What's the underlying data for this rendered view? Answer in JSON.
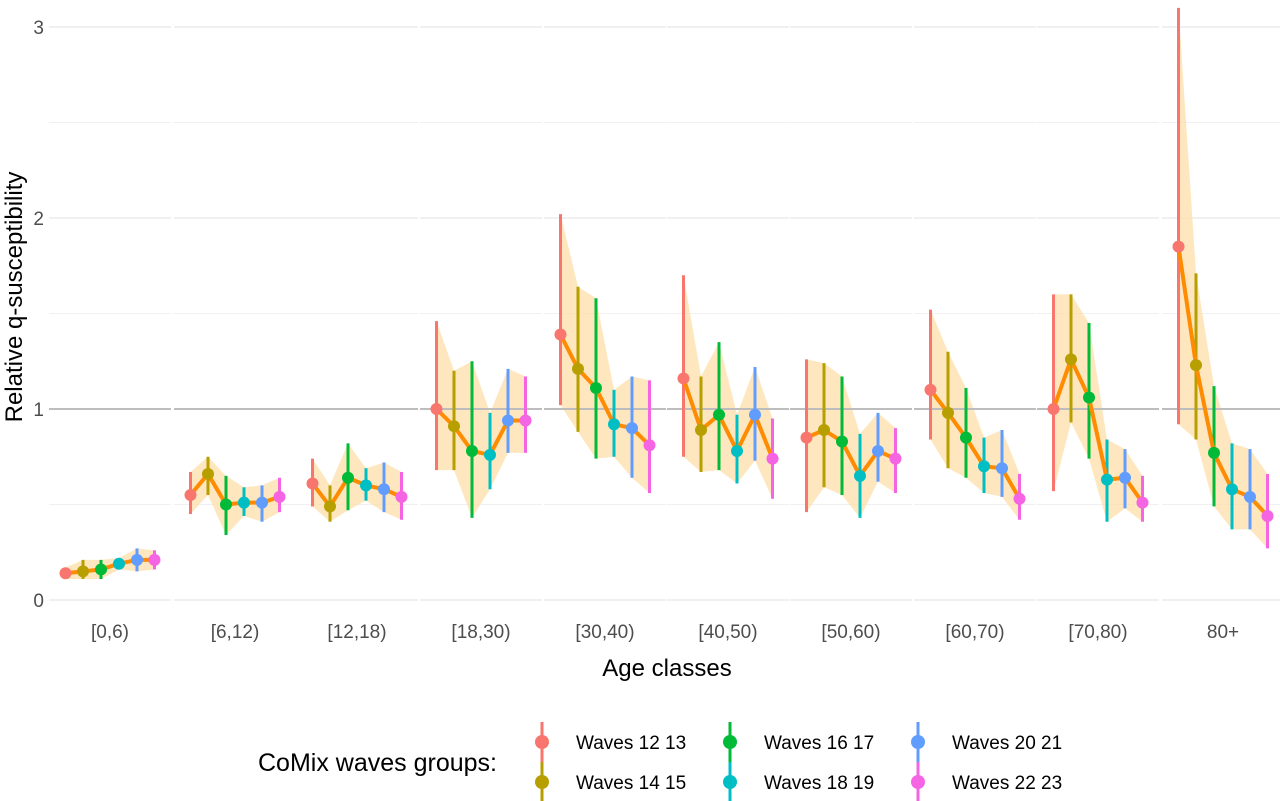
{
  "chart_data": {
    "type": "line",
    "title": "",
    "xlabel": "Age classes",
    "ylabel": "Relative q-susceptibility",
    "ylim": [
      0,
      3.1
    ],
    "yticks": [
      "0",
      "1",
      "2",
      "3"
    ],
    "reference_line": 1,
    "grid": true,
    "legend_position": "bottom",
    "legend_title": "CoMix waves groups:",
    "categories": [
      "[0,6)",
      "[6,12)",
      "[12,18)",
      "[18,30)",
      "[30,40)",
      "[40,50)",
      "[50,60)",
      "[60,70)",
      "[70,80)",
      "80+"
    ],
    "series": [
      {
        "name": "Waves 12 13",
        "color": "#F8766D",
        "values": [
          0.14,
          0.55,
          0.61,
          1.0,
          1.39,
          1.16,
          0.85,
          1.1,
          1.0,
          1.85
        ],
        "lower": [
          0.11,
          0.45,
          0.49,
          0.68,
          1.02,
          0.75,
          0.46,
          0.84,
          0.57,
          0.92
        ],
        "upper": [
          0.17,
          0.67,
          0.74,
          1.46,
          2.02,
          1.7,
          1.26,
          1.52,
          1.6,
          3.1
        ]
      },
      {
        "name": "Waves 14 15",
        "color": "#B79F00",
        "values": [
          0.15,
          0.66,
          0.49,
          0.91,
          1.21,
          0.89,
          0.89,
          0.98,
          1.26,
          1.23
        ],
        "lower": [
          0.11,
          0.55,
          0.41,
          0.68,
          0.88,
          0.67,
          0.59,
          0.69,
          0.93,
          0.84
        ],
        "upper": [
          0.21,
          0.75,
          0.6,
          1.2,
          1.64,
          1.17,
          1.24,
          1.3,
          1.6,
          1.71
        ]
      },
      {
        "name": "Waves 16 17",
        "color": "#00BA38",
        "values": [
          0.16,
          0.5,
          0.64,
          0.78,
          1.11,
          0.97,
          0.83,
          0.85,
          1.06,
          0.77
        ],
        "lower": [
          0.11,
          0.34,
          0.47,
          0.43,
          0.74,
          0.68,
          0.55,
          0.64,
          0.74,
          0.49
        ],
        "upper": [
          0.21,
          0.65,
          0.82,
          1.25,
          1.58,
          1.35,
          1.17,
          1.11,
          1.45,
          1.12
        ]
      },
      {
        "name": "Waves 18 19",
        "color": "#00BFC4",
        "values": [
          0.19,
          0.51,
          0.6,
          0.76,
          0.92,
          0.78,
          0.65,
          0.7,
          0.63,
          0.58
        ],
        "lower": [
          0.16,
          0.44,
          0.52,
          0.58,
          0.75,
          0.61,
          0.43,
          0.56,
          0.41,
          0.37
        ],
        "upper": [
          0.22,
          0.59,
          0.69,
          0.98,
          1.1,
          0.97,
          0.87,
          0.85,
          0.84,
          0.82
        ]
      },
      {
        "name": "Waves 20 21",
        "color": "#619CFF",
        "values": [
          0.21,
          0.51,
          0.58,
          0.94,
          0.9,
          0.97,
          0.78,
          0.69,
          0.64,
          0.54
        ],
        "lower": [
          0.15,
          0.41,
          0.46,
          0.77,
          0.64,
          0.73,
          0.62,
          0.54,
          0.48,
          0.37
        ],
        "upper": [
          0.27,
          0.6,
          0.72,
          1.21,
          1.17,
          1.22,
          0.98,
          0.89,
          0.79,
          0.79
        ]
      },
      {
        "name": "Waves 22 23",
        "color": "#F564E3",
        "values": [
          0.21,
          0.54,
          0.54,
          0.94,
          0.81,
          0.74,
          0.74,
          0.53,
          0.51,
          0.44
        ],
        "lower": [
          0.16,
          0.46,
          0.42,
          0.77,
          0.56,
          0.53,
          0.56,
          0.42,
          0.41,
          0.27
        ],
        "upper": [
          0.26,
          0.64,
          0.67,
          1.17,
          1.15,
          0.95,
          0.9,
          0.66,
          0.65,
          0.66
        ]
      }
    ],
    "trend_color": "#FF8C00",
    "band_color": "#FDDFA8"
  }
}
